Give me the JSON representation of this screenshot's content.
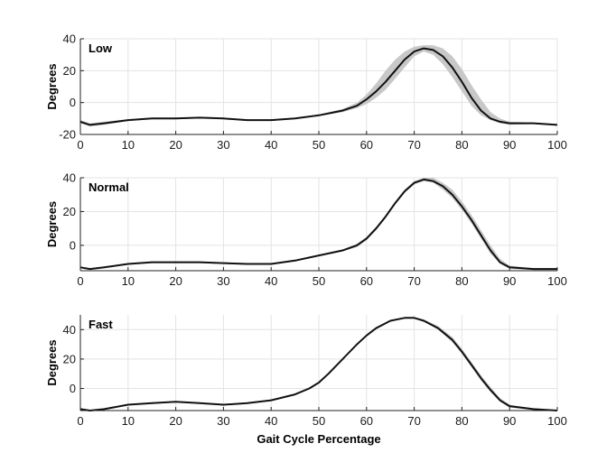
{
  "chart_data": [
    {
      "type": "line",
      "title": "Low",
      "ylabel": "Degrees",
      "xlim": [
        0,
        100
      ],
      "ylim": [
        -20,
        40
      ],
      "xticks": [
        0,
        10,
        20,
        30,
        40,
        50,
        60,
        70,
        80,
        90,
        100
      ],
      "yticks": [
        -20,
        0,
        20,
        40
      ],
      "grid": true,
      "colors": {
        "mean": "#111111",
        "band": "#c8c8c8"
      },
      "series": [
        {
          "x": [
            0,
            2,
            5,
            10,
            15,
            20,
            25,
            30,
            35,
            40,
            45,
            50,
            55,
            58,
            60,
            62,
            64,
            66,
            68,
            70,
            72,
            74,
            76,
            78,
            80,
            82,
            84,
            86,
            88,
            90,
            95,
            100
          ],
          "mean": [
            -12,
            -14,
            -13,
            -11,
            -10,
            -10,
            -9.5,
            -10,
            -11,
            -11,
            -10,
            -8,
            -5,
            -2,
            2,
            7,
            13,
            20,
            27,
            32,
            34,
            33,
            29,
            22,
            13,
            3,
            -5,
            -10,
            -12,
            -13,
            -13,
            -14
          ],
          "upper": [
            -11,
            -13,
            -12,
            -10.5,
            -9.5,
            -9.5,
            -9,
            -9.5,
            -10.5,
            -10.5,
            -9.5,
            -7.5,
            -4,
            0,
            5,
            12,
            20,
            27,
            32,
            35,
            36,
            36,
            34,
            29,
            21,
            11,
            2,
            -6,
            -10,
            -12,
            -12.5,
            -13.5
          ],
          "lower": [
            -13,
            -15,
            -14,
            -11.5,
            -10.5,
            -10.5,
            -10,
            -10.5,
            -11.5,
            -11.5,
            -10.5,
            -8.5,
            -6,
            -3.5,
            -1,
            3,
            8,
            15,
            22,
            29,
            32,
            30,
            24,
            16,
            7,
            -2,
            -8,
            -11,
            -13,
            -14,
            -13.5,
            -14.5
          ]
        }
      ]
    },
    {
      "type": "line",
      "title": "Normal",
      "ylabel": "Degrees",
      "xlim": [
        0,
        100
      ],
      "ylim": [
        -15,
        40
      ],
      "xticks": [
        0,
        10,
        20,
        30,
        40,
        50,
        60,
        70,
        80,
        90,
        100
      ],
      "yticks": [
        0,
        20,
        40
      ],
      "grid": true,
      "colors": {
        "mean": "#111111",
        "band": "#c8c8c8"
      },
      "series": [
        {
          "x": [
            0,
            2,
            5,
            10,
            15,
            20,
            25,
            30,
            35,
            40,
            45,
            50,
            55,
            58,
            60,
            62,
            64,
            66,
            68,
            70,
            72,
            74,
            76,
            78,
            80,
            82,
            84,
            86,
            88,
            90,
            95,
            100
          ],
          "mean": [
            -13,
            -14,
            -13,
            -11,
            -10,
            -10,
            -10,
            -10.5,
            -11,
            -11,
            -9,
            -6,
            -3,
            0,
            4,
            10,
            17,
            25,
            32,
            37,
            39,
            38,
            35,
            30,
            23,
            15,
            6,
            -3,
            -10,
            -13,
            -14,
            -14
          ],
          "upper": [
            -12.5,
            -13.5,
            -12.5,
            -10.5,
            -9.5,
            -9.5,
            -9.5,
            -10,
            -10.5,
            -10.5,
            -8.5,
            -5.5,
            -2.5,
            1,
            5,
            11,
            18,
            26,
            33,
            38,
            40,
            40,
            37,
            33,
            26,
            18,
            9,
            0,
            -8,
            -12,
            -13.5,
            -13.5
          ],
          "lower": [
            -13.5,
            -14.5,
            -13.5,
            -11.5,
            -10.5,
            -10.5,
            -10.5,
            -11,
            -11.5,
            -11.5,
            -9.5,
            -6.5,
            -3.5,
            -1,
            3,
            9,
            16,
            24,
            31,
            36,
            38,
            37,
            33,
            28,
            21,
            13,
            4,
            -5,
            -11,
            -14,
            -14.5,
            -14.5
          ]
        }
      ]
    },
    {
      "type": "line",
      "title": "Fast",
      "ylabel": "Degrees",
      "xlabel": "Gait Cycle Percentage",
      "xlim": [
        0,
        100
      ],
      "ylim": [
        -15,
        50
      ],
      "xticks": [
        0,
        10,
        20,
        30,
        40,
        50,
        60,
        70,
        80,
        90,
        100
      ],
      "yticks": [
        0,
        20,
        40
      ],
      "grid": true,
      "colors": {
        "mean": "#111111",
        "band": "#c8c8c8"
      },
      "series": [
        {
          "x": [
            0,
            2,
            5,
            10,
            15,
            20,
            25,
            30,
            35,
            40,
            45,
            48,
            50,
            52,
            55,
            58,
            60,
            62,
            65,
            68,
            70,
            72,
            75,
            78,
            80,
            82,
            84,
            86,
            88,
            90,
            95,
            100
          ],
          "mean": [
            -14,
            -15,
            -14,
            -11,
            -10,
            -9,
            -10,
            -11,
            -10,
            -8,
            -4,
            0,
            4,
            10,
            20,
            30,
            36,
            41,
            46,
            48,
            48,
            46,
            41,
            33,
            25,
            16,
            7,
            -1,
            -8,
            -12,
            -14,
            -15
          ],
          "upper": [
            -13.5,
            -14.5,
            -13.5,
            -10.5,
            -9.5,
            -8.5,
            -9.5,
            -10.5,
            -9.5,
            -7.5,
            -3.5,
            0.5,
            4.5,
            10.5,
            20.5,
            30.5,
            36.5,
            41.5,
            46.5,
            48.5,
            48.5,
            47,
            42.5,
            35,
            27,
            18,
            9,
            1,
            -6.5,
            -11,
            -13.5,
            -14.5
          ],
          "lower": [
            -14.5,
            -15.5,
            -14.5,
            -11.5,
            -10.5,
            -9.5,
            -10.5,
            -11.5,
            -10.5,
            -8.5,
            -4.5,
            -0.5,
            3.5,
            9.5,
            19.5,
            29.5,
            35.5,
            40.5,
            45.5,
            47.5,
            47.5,
            45.5,
            40,
            31.5,
            23.5,
            14.5,
            5.5,
            -2.5,
            -9,
            -13,
            -14.5,
            -15.5
          ]
        }
      ]
    }
  ]
}
